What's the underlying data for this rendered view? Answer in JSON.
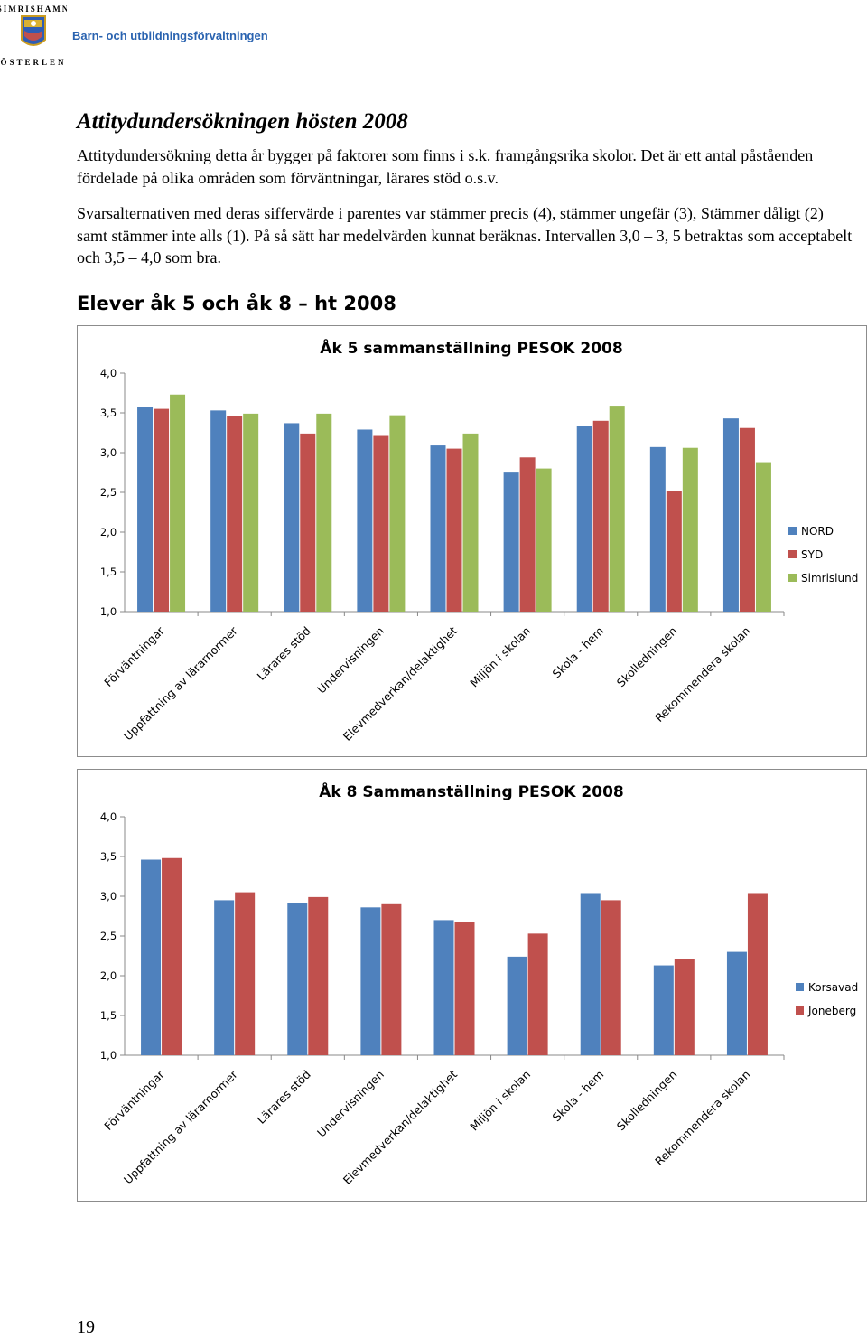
{
  "header": {
    "logo_text": "SIMRISHAMN ÖSTERLEN",
    "department": "Barn- och utbildningsförvaltningen"
  },
  "document": {
    "title": "Attitydundersökningen hösten 2008",
    "paragraph1": "Attitydundersökning detta år bygger på faktorer som finns i s.k. framgångsrika skolor. Det är ett antal påståenden fördelade på olika områden som förväntningar, lärares stöd o.s.v.",
    "paragraph2": "Svarsalternativen med deras siffervärde i parentes var stämmer precis (4), stämmer ungefär (3), Stämmer dåligt (2) samt stämmer inte alls (1). På så sätt har medelvärden kunnat beräknas. Intervallen 3,0 – 3, 5 betraktas som acceptabelt och 3,5 – 4,0 som bra.",
    "subheading": "Elever åk 5 och åk 8 – ht 2008",
    "page_number": "19"
  },
  "colors": {
    "blue": "#4f81bd",
    "red": "#c0504d",
    "green": "#9bbb59"
  },
  "chart_data": [
    {
      "type": "bar",
      "title": "Åk 5 sammanställning PESOK 2008",
      "categories": [
        "Förväntningar",
        "Uppfattning av lärarnormer",
        "Lärares stöd",
        "Undervisningen",
        "Elevmedverkan/delaktighet",
        "Miljön i skolan",
        "Skola - hem",
        "Skolledningen",
        "Rekommendera skolan"
      ],
      "series": [
        {
          "name": "NORD",
          "color": "#4f81bd",
          "values": [
            3.57,
            3.53,
            3.37,
            3.29,
            3.09,
            2.76,
            3.33,
            3.07,
            3.43
          ]
        },
        {
          "name": "SYD",
          "color": "#c0504d",
          "values": [
            3.55,
            3.46,
            3.24,
            3.21,
            3.05,
            2.94,
            3.4,
            2.52,
            3.31
          ]
        },
        {
          "name": "Simrislund",
          "color": "#9bbb59",
          "values": [
            3.73,
            3.49,
            3.49,
            3.47,
            3.24,
            2.8,
            3.59,
            3.06,
            2.88
          ]
        }
      ],
      "ylim": [
        1.0,
        4.0
      ],
      "yticks": [
        "4,0",
        "3,5",
        "3,0",
        "2,5",
        "2,0",
        "1,5",
        "1,0"
      ],
      "legend": "right",
      "grid": false
    },
    {
      "type": "bar",
      "title": "Åk 8 Sammanställning PESOK 2008",
      "categories": [
        "Förväntningar",
        "Uppfattning av lärarnormer",
        "Lärares stöd",
        "Undervisningen",
        "Elevmedverkan/delaktighet",
        "Miljön i skolan",
        "Skola - hem",
        "Skolledningen",
        "Rekommendera skolan"
      ],
      "series": [
        {
          "name": "Korsavad",
          "color": "#4f81bd",
          "values": [
            3.46,
            2.95,
            2.91,
            2.86,
            2.7,
            2.24,
            3.04,
            2.13,
            2.3
          ]
        },
        {
          "name": "Joneberg",
          "color": "#c0504d",
          "values": [
            3.48,
            3.05,
            2.99,
            2.9,
            2.68,
            2.53,
            2.95,
            2.21,
            3.04
          ]
        }
      ],
      "ylim": [
        1.0,
        4.0
      ],
      "yticks": [
        "4,0",
        "3,5",
        "3,0",
        "2,5",
        "2,0",
        "1,5",
        "1,0"
      ],
      "legend": "right",
      "grid": false
    }
  ]
}
